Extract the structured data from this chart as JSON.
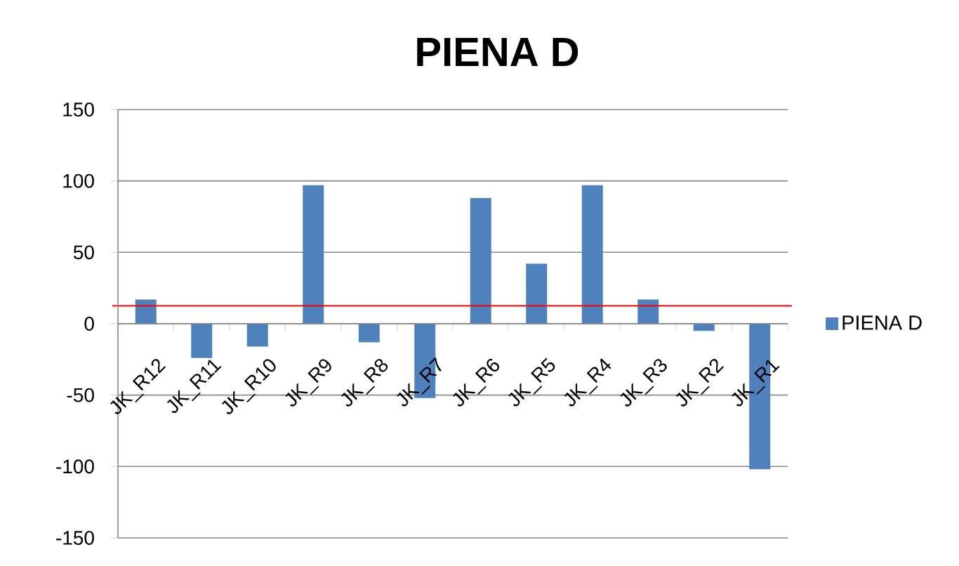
{
  "chart_data": {
    "type": "bar",
    "title": "PIENA D",
    "categories": [
      "JK_R12",
      "JK_R11",
      "JK_R10",
      "JK_R9",
      "JK_R8",
      "JK_R7",
      "JK_R6",
      "JK_R5",
      "JK_R4",
      "JK_R3",
      "JK_R2",
      "JK_R1"
    ],
    "series": [
      {
        "name": "PIENA D",
        "color": "#4f81bd",
        "values": [
          17,
          -24,
          -16,
          97,
          -13,
          -52,
          88,
          42,
          97,
          17,
          -5,
          -102
        ]
      }
    ],
    "ylim": [
      -150,
      150
    ],
    "yticks": [
      -150,
      -100,
      -50,
      0,
      50,
      100,
      150
    ],
    "grid": "y",
    "legend": "right",
    "ref_lines": [
      {
        "axis": "y",
        "value": 12.5,
        "color": "#ff0000"
      }
    ]
  }
}
